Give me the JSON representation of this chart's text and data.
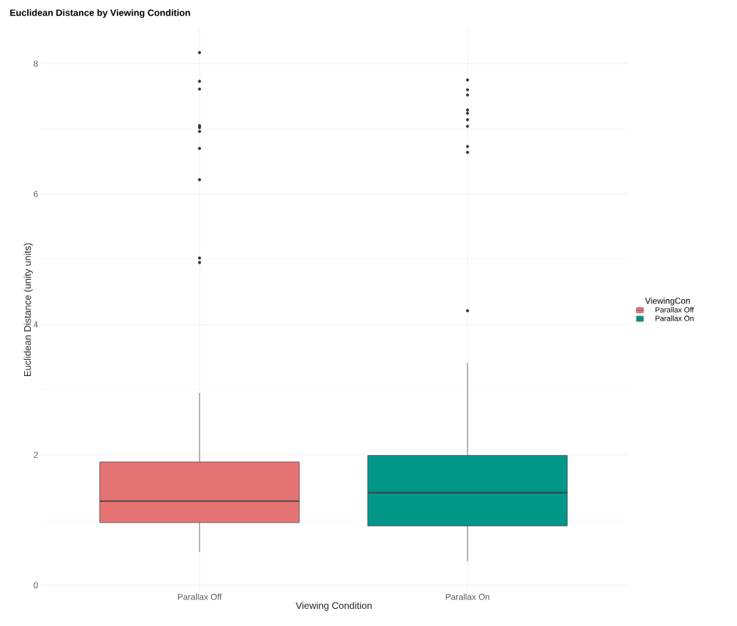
{
  "chart_data": {
    "type": "box",
    "title": "Euclidean Distance by Viewing Condition",
    "xlabel": "Viewing Condition",
    "ylabel": "Euclidean Distance (unity units)",
    "legend_title": "ViewingCon",
    "categories": [
      "Parallax Off",
      "Parallax On"
    ],
    "series": [
      {
        "name": "Parallax Off",
        "color": "#e57373",
        "boxes": [
          {
            "low": 0.51,
            "q1": 0.96,
            "median": 1.29,
            "q3": 1.89,
            "high": 2.95,
            "outliers": [
              8.17,
              7.73,
              7.61,
              7.05,
              7.02,
              6.96,
              6.7,
              6.22,
              5.02,
              4.95
            ]
          },
          null
        ]
      },
      {
        "name": "Parallax On",
        "color": "#009688",
        "boxes": [
          null,
          {
            "low": 0.37,
            "q1": 0.91,
            "median": 1.42,
            "q3": 1.99,
            "high": 3.41,
            "outliers": [
              7.75,
              7.6,
              7.52,
              7.29,
              7.24,
              7.14,
              7.04,
              6.73,
              6.64,
              4.21
            ]
          }
        ]
      }
    ],
    "ylim": [
      -0.09,
      8.54
    ],
    "yticks": [
      0,
      2,
      4,
      6,
      8
    ],
    "grid": true,
    "legend": "right"
  }
}
